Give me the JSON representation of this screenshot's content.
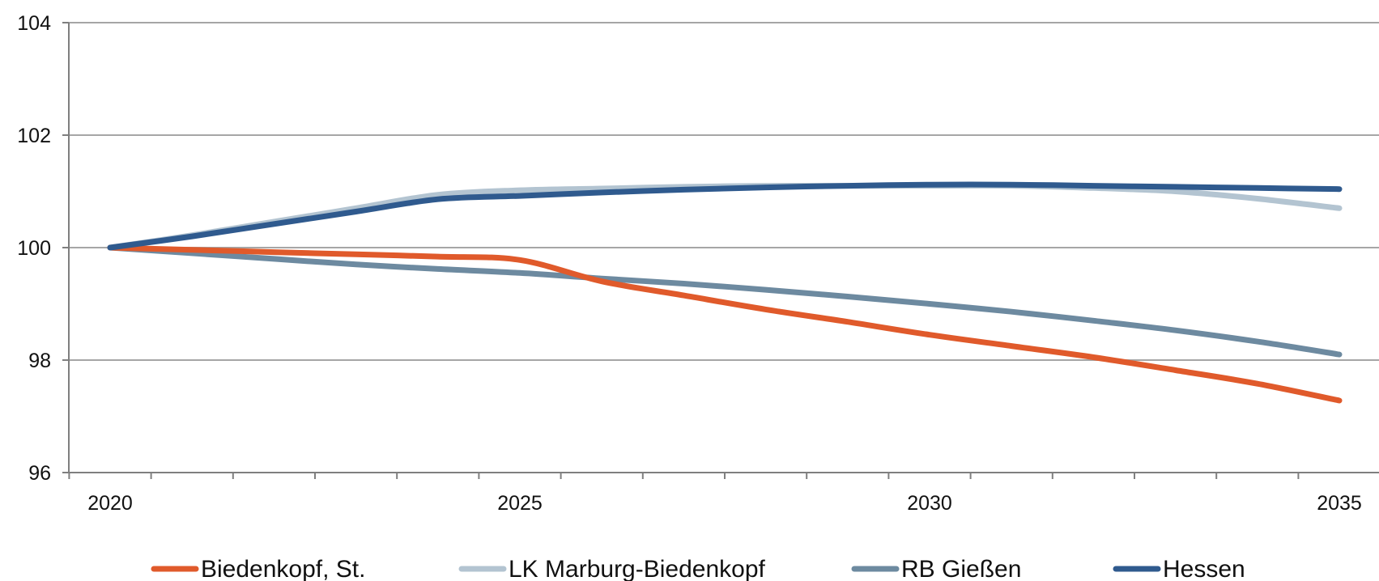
{
  "chart_data": {
    "type": "line",
    "title": "",
    "xlabel": "",
    "ylabel": "",
    "xlim": [
      2019.5,
      2035.5
    ],
    "ylim": [
      96,
      104
    ],
    "x_ticks": [
      "2020",
      "2025",
      "2030",
      "2035"
    ],
    "y_ticks": [
      "96",
      "98",
      "100",
      "102",
      "104"
    ],
    "grid": "horizontal",
    "legend_position": "bottom",
    "x": [
      2020,
      2021,
      2022,
      2023,
      2024,
      2025,
      2026,
      2027,
      2028,
      2029,
      2030,
      2031,
      2032,
      2033,
      2034,
      2035
    ],
    "series": [
      {
        "name": "Biedenkopf, St.",
        "color": "#e05a2b",
        "values": [
          100.0,
          99.96,
          99.92,
          99.88,
          99.84,
          99.78,
          99.4,
          99.15,
          98.9,
          98.68,
          98.45,
          98.25,
          98.05,
          97.82,
          97.58,
          97.28
        ]
      },
      {
        "name": "LK Marburg-Biedenkopf",
        "color": "#b3c4d1",
        "values": [
          100.0,
          100.22,
          100.46,
          100.7,
          100.94,
          101.02,
          101.05,
          101.08,
          101.1,
          101.1,
          101.1,
          101.1,
          101.06,
          101.0,
          100.87,
          100.7
        ]
      },
      {
        "name": "RB Gießen",
        "color": "#6d8aa0",
        "values": [
          100.0,
          99.9,
          99.8,
          99.7,
          99.62,
          99.55,
          99.45,
          99.36,
          99.25,
          99.13,
          99.0,
          98.86,
          98.7,
          98.53,
          98.33,
          98.1
        ]
      },
      {
        "name": "Hessen",
        "color": "#2f5a8e",
        "values": [
          100.0,
          100.2,
          100.42,
          100.64,
          100.86,
          100.92,
          100.98,
          101.03,
          101.07,
          101.1,
          101.12,
          101.12,
          101.1,
          101.08,
          101.06,
          101.04
        ]
      }
    ]
  }
}
